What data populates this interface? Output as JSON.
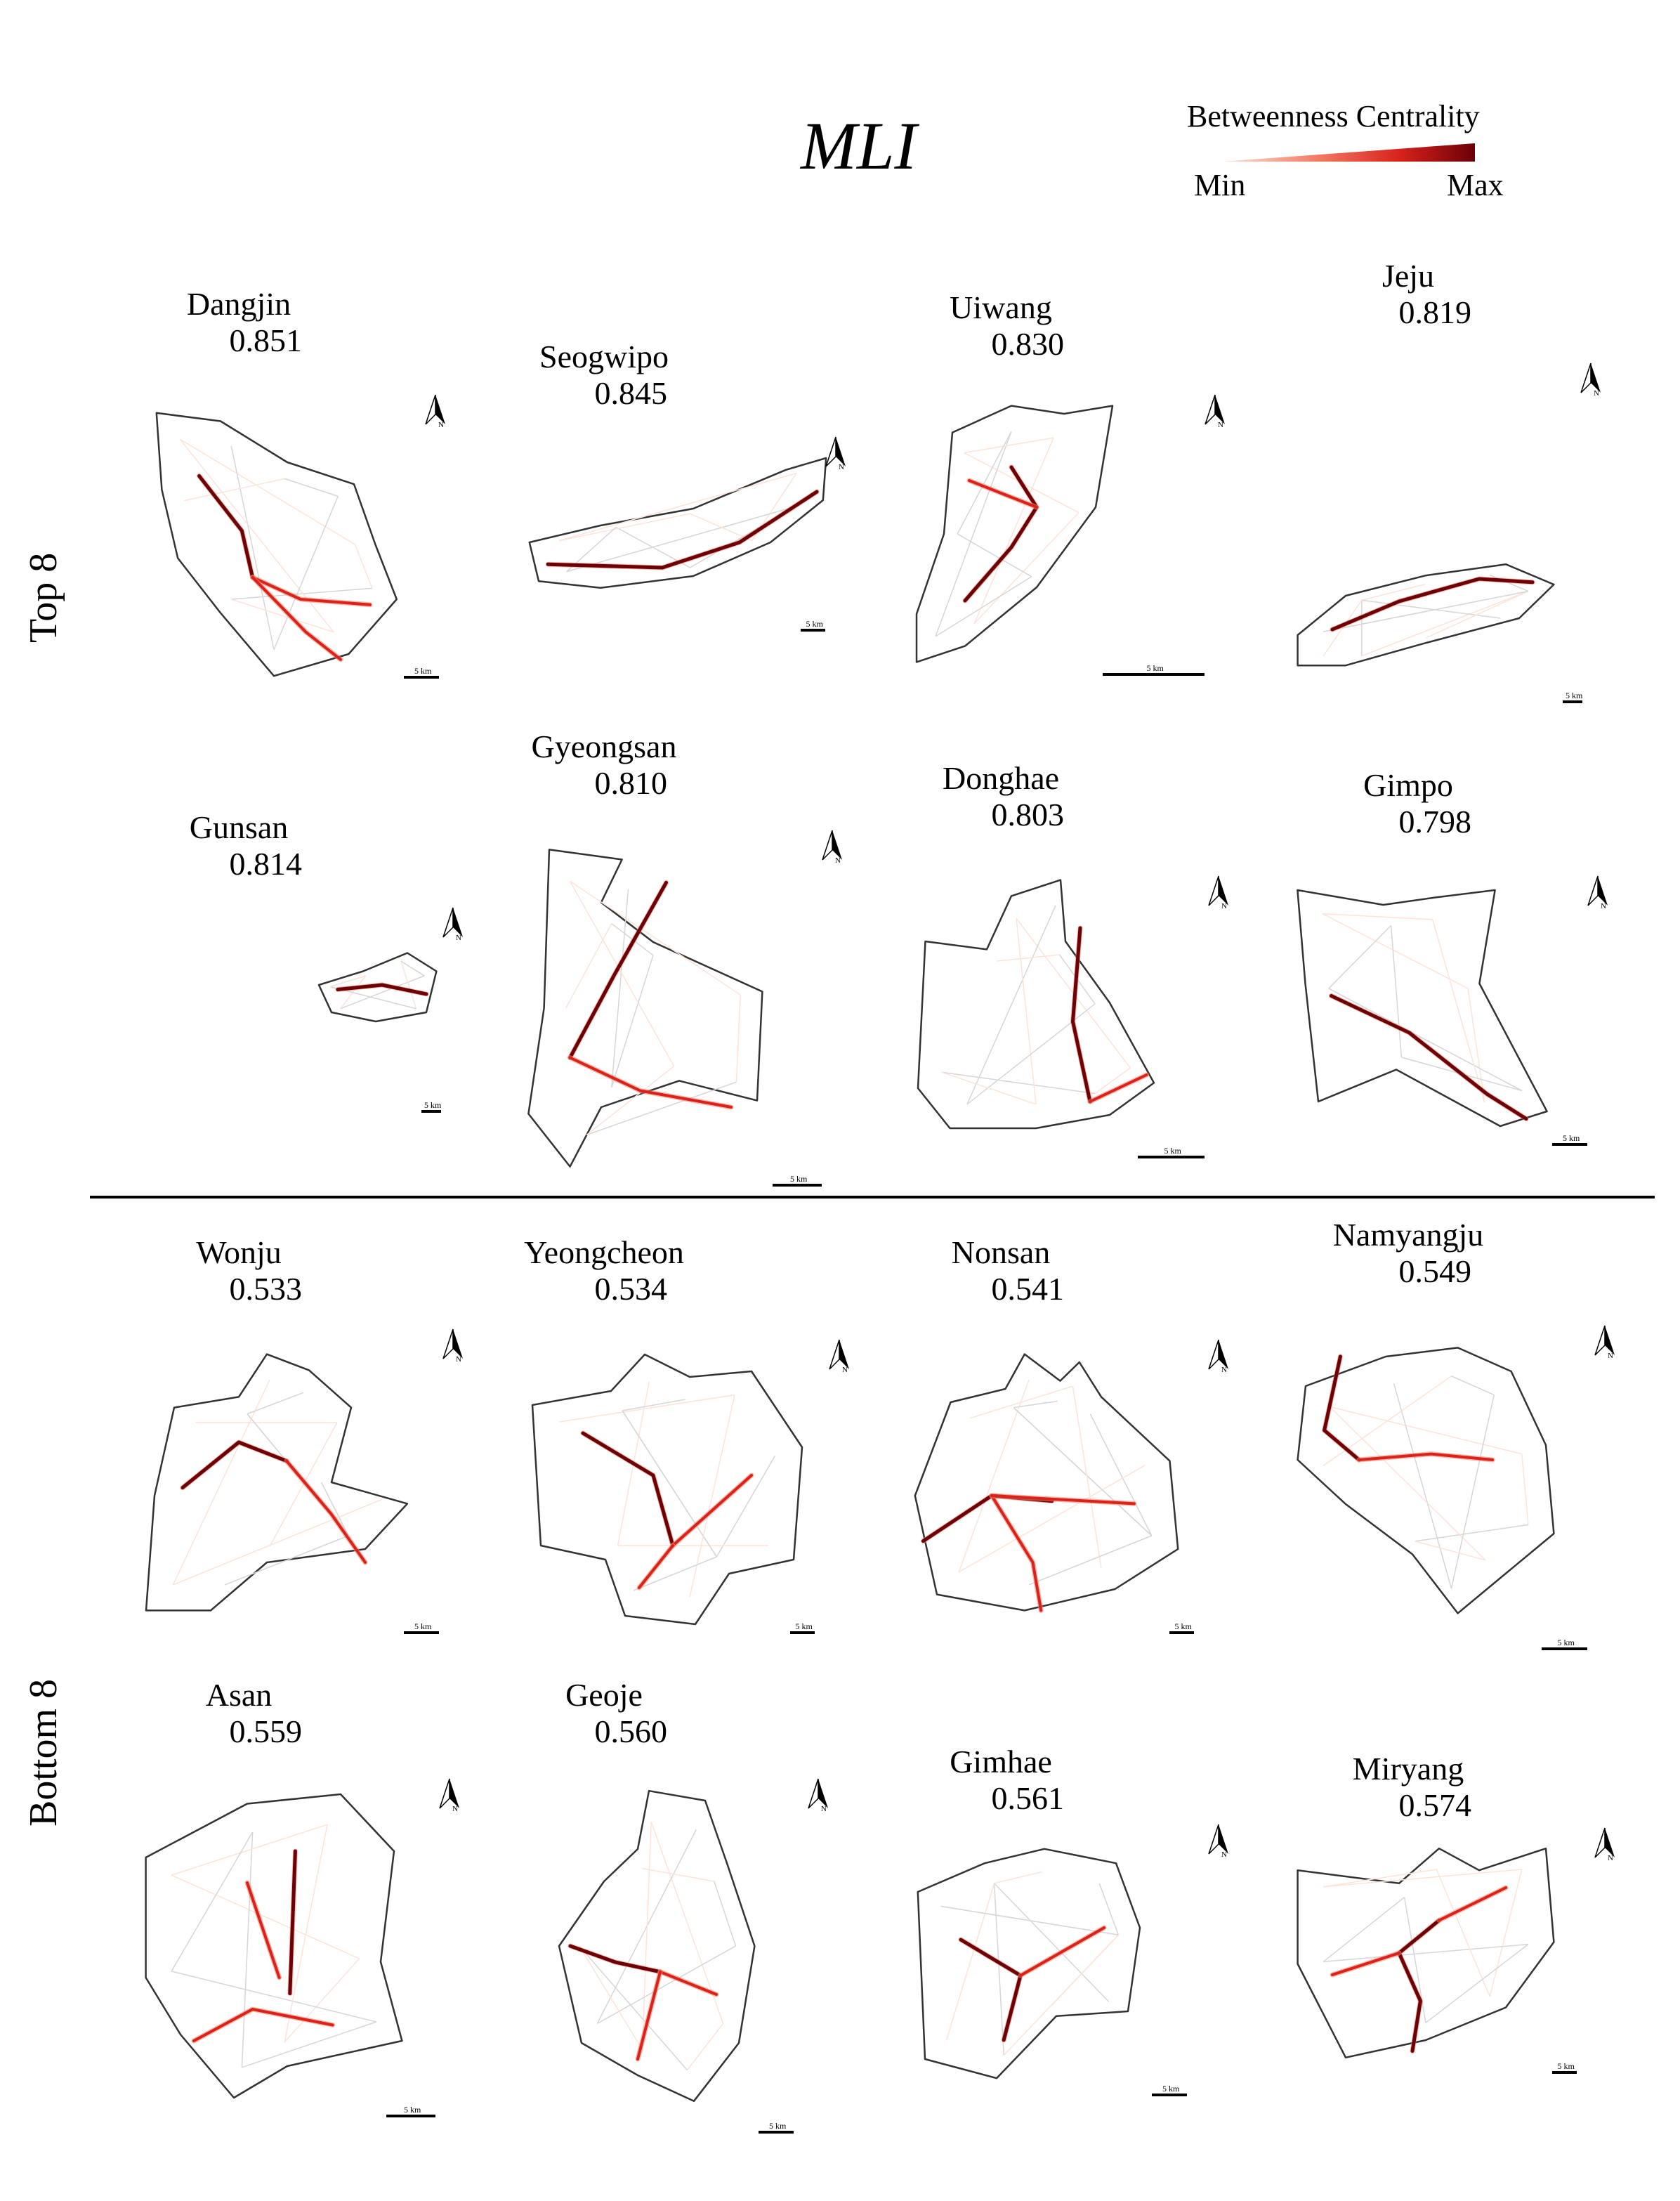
{
  "title": "MLI",
  "legend": {
    "title": "Betweenness Centrality",
    "min_label": "Min",
    "max_label": "Max",
    "colors": [
      "#fde3d8",
      "#f4836a",
      "#d9221b",
      "#6b0007"
    ]
  },
  "groups": {
    "top": "Top 8",
    "bottom": "Bottom 8"
  },
  "north_label": "N",
  "scale_label": "5 km",
  "cities": [
    {
      "name": "Dangjin",
      "value": "0.851"
    },
    {
      "name": "Seogwipo",
      "value": "0.845"
    },
    {
      "name": "Uiwang",
      "value": "0.830"
    },
    {
      "name": "Jeju",
      "value": "0.819"
    },
    {
      "name": "Gunsan",
      "value": "0.814"
    },
    {
      "name": "Gyeongsan",
      "value": "0.810"
    },
    {
      "name": "Donghae",
      "value": "0.803"
    },
    {
      "name": "Gimpo",
      "value": "0.798"
    },
    {
      "name": "Wonju",
      "value": "0.533"
    },
    {
      "name": "Yeongcheon",
      "value": "0.534"
    },
    {
      "name": "Nonsan",
      "value": "0.541"
    },
    {
      "name": "Namyangju",
      "value": "0.549"
    },
    {
      "name": "Asan",
      "value": "0.559"
    },
    {
      "name": "Geoje",
      "value": "0.560"
    },
    {
      "name": "Gimhae",
      "value": "0.561"
    },
    {
      "name": "Miryang",
      "value": "0.574"
    }
  ]
}
